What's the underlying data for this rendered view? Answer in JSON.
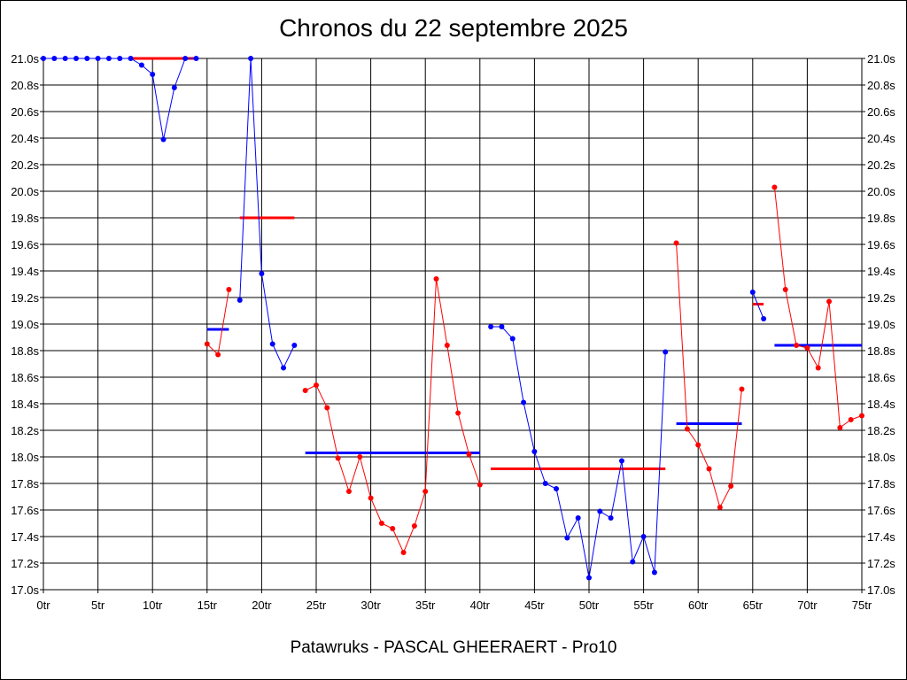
{
  "chart_data": {
    "type": "line",
    "title": "Chronos du 22 septembre 2025",
    "caption": "Patawruks - PASCAL GHEERAERT - Pro10",
    "xlabel": "",
    "ylabel": "",
    "xlim": [
      0,
      75
    ],
    "ylim": [
      17.0,
      21.0
    ],
    "x_ticks": [
      0,
      5,
      10,
      15,
      20,
      25,
      30,
      35,
      40,
      45,
      50,
      55,
      60,
      65,
      70,
      75
    ],
    "x_tick_labels": [
      "0tr",
      "5tr",
      "10tr",
      "15tr",
      "20tr",
      "25tr",
      "30tr",
      "35tr",
      "40tr",
      "45tr",
      "50tr",
      "55tr",
      "60tr",
      "65tr",
      "70tr",
      "75tr"
    ],
    "y_ticks": [
      17.0,
      17.2,
      17.4,
      17.6,
      17.8,
      18.0,
      18.2,
      18.4,
      18.6,
      18.8,
      19.0,
      19.2,
      19.4,
      19.6,
      19.8,
      20.0,
      20.2,
      20.4,
      20.6,
      20.8,
      21.0
    ],
    "y_tick_labels": [
      "17.0s",
      "17.2s",
      "17.4s",
      "17.6s",
      "17.8s",
      "18.0s",
      "18.2s",
      "18.4s",
      "18.6s",
      "18.8s",
      "19.0s",
      "19.2s",
      "19.4s",
      "19.6s",
      "19.8s",
      "20.0s",
      "20.2s",
      "20.4s",
      "20.6s",
      "20.8s",
      "21.0s"
    ],
    "grid": true,
    "colors": {
      "blue": "#0000ff",
      "red": "#ff0000",
      "grid": "#000000"
    },
    "series": [
      {
        "color": "#0000ff",
        "x": [
          0,
          1,
          2,
          3,
          4,
          5,
          6,
          7,
          8,
          9,
          10,
          11,
          12,
          13,
          14
        ],
        "y": [
          21.0,
          21.0,
          21.0,
          21.0,
          21.0,
          21.0,
          21.0,
          21.0,
          21.0,
          20.95,
          20.88,
          20.39,
          20.78,
          21.0,
          21.0
        ]
      },
      {
        "color": "#ff0000",
        "x": [
          15,
          16,
          17
        ],
        "y": [
          18.85,
          18.77,
          19.26
        ]
      },
      {
        "color": "#0000ff",
        "x": [
          18,
          19,
          20,
          21,
          22,
          23
        ],
        "y": [
          19.18,
          21.0,
          19.38,
          18.85,
          18.67,
          18.84
        ]
      },
      {
        "color": "#ff0000",
        "x": [
          24,
          25,
          26,
          27,
          28,
          29,
          30,
          31,
          32,
          33,
          34,
          35,
          36,
          37,
          38,
          39,
          40
        ],
        "y": [
          18.5,
          18.54,
          18.37,
          17.99,
          17.74,
          18.0,
          17.69,
          17.5,
          17.46,
          17.28,
          17.48,
          17.74,
          19.34,
          18.84,
          18.33,
          18.02,
          17.79
        ]
      },
      {
        "color": "#0000ff",
        "x": [
          41,
          42,
          43,
          44,
          45,
          46,
          47,
          48,
          49,
          50,
          51,
          52,
          53,
          54,
          55,
          56,
          57
        ],
        "y": [
          18.98,
          18.98,
          18.89,
          18.41,
          18.04,
          17.8,
          17.76,
          17.39,
          17.54,
          17.09,
          17.59,
          17.54,
          17.97,
          17.21,
          17.4,
          17.13,
          18.79
        ]
      },
      {
        "color": "#ff0000",
        "x": [
          58,
          59,
          60,
          61,
          62,
          63,
          64
        ],
        "y": [
          19.61,
          18.21,
          18.09,
          17.91,
          17.62,
          17.78,
          18.51
        ]
      },
      {
        "color": "#0000ff",
        "x": [
          65,
          66
        ],
        "y": [
          19.24,
          19.04
        ]
      },
      {
        "color": "#ff0000",
        "x": [
          67,
          68,
          69,
          70,
          71,
          72,
          73,
          74,
          75
        ],
        "y": [
          20.03,
          19.26,
          18.84,
          18.82,
          18.67,
          19.17,
          18.22,
          18.28,
          18.31
        ]
      }
    ],
    "averages": [
      {
        "color": "#ff0000",
        "x_start": 8,
        "x_end": 14,
        "value": 21.0
      },
      {
        "color": "#0000ff",
        "x_start": 15,
        "x_end": 17,
        "value": 18.96
      },
      {
        "color": "#ff0000",
        "x_start": 18,
        "x_end": 23,
        "value": 19.8
      },
      {
        "color": "#0000ff",
        "x_start": 24,
        "x_end": 40,
        "value": 18.03
      },
      {
        "color": "#ff0000",
        "x_start": 41,
        "x_end": 57,
        "value": 17.91
      },
      {
        "color": "#0000ff",
        "x_start": 58,
        "x_end": 64,
        "value": 18.25
      },
      {
        "color": "#ff0000",
        "x_start": 65,
        "x_end": 66,
        "value": 19.15
      },
      {
        "color": "#0000ff",
        "x_start": 67,
        "x_end": 75,
        "value": 18.84
      }
    ]
  }
}
